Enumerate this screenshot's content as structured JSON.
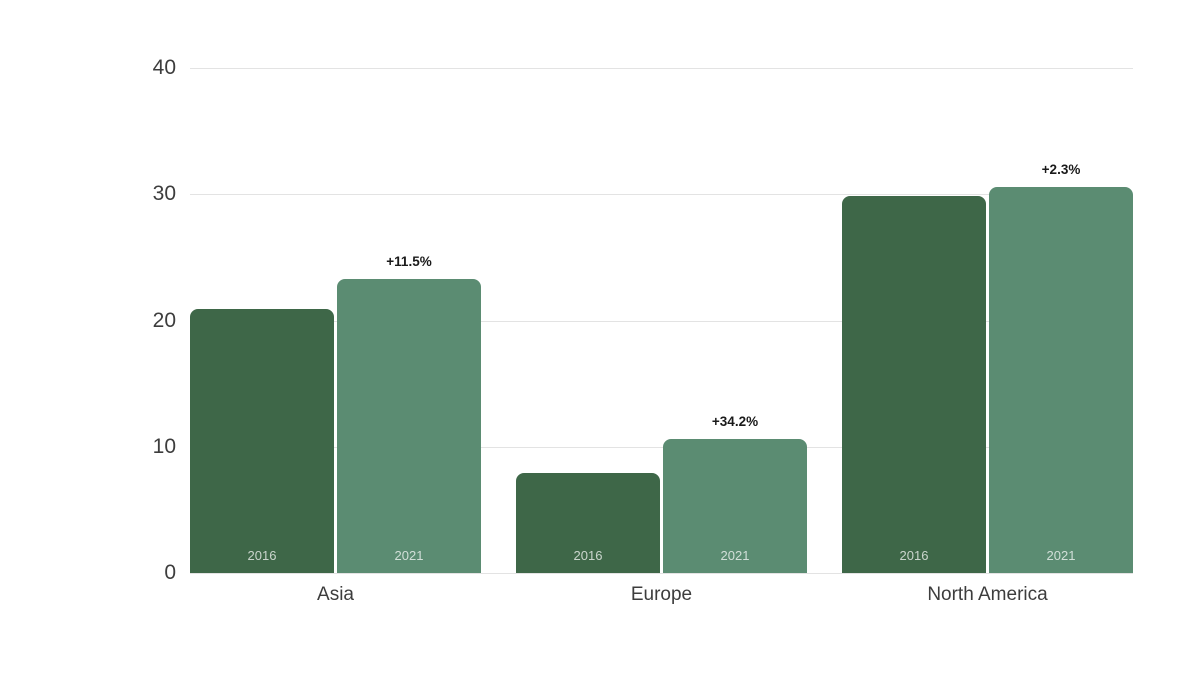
{
  "chart_data": {
    "type": "bar",
    "title": "",
    "xlabel": "",
    "ylabel": "",
    "categories": [
      "Asia",
      "Europe",
      "North America"
    ],
    "series": [
      {
        "name": "2016",
        "color": "#3e6748",
        "values": [
          20.9,
          7.9,
          29.9
        ]
      },
      {
        "name": "2021",
        "color": "#5b8c72",
        "values": [
          23.3,
          10.6,
          30.6
        ]
      }
    ],
    "bar_inner_labels": true,
    "annotations": [
      {
        "category": "Asia",
        "series": "2021",
        "label": "+11.5%"
      },
      {
        "category": "Europe",
        "series": "2021",
        "label": "+34.2%"
      },
      {
        "category": "North America",
        "series": "2021",
        "label": "+2.3%"
      }
    ],
    "yticks": [
      0,
      10,
      20,
      30,
      40
    ],
    "ylim": [
      0,
      40
    ],
    "grid": true,
    "legend": "none",
    "colors": {
      "background": "#ffffff",
      "gridline": "#e3e3e3",
      "axis_text": "#3d3d3d",
      "bar_2016": "#3e6748",
      "bar_2021": "#5b8c72",
      "bar_inner_label": "rgba(255,255,255,0.72)",
      "annotation_text": "#1a1a1a"
    }
  }
}
